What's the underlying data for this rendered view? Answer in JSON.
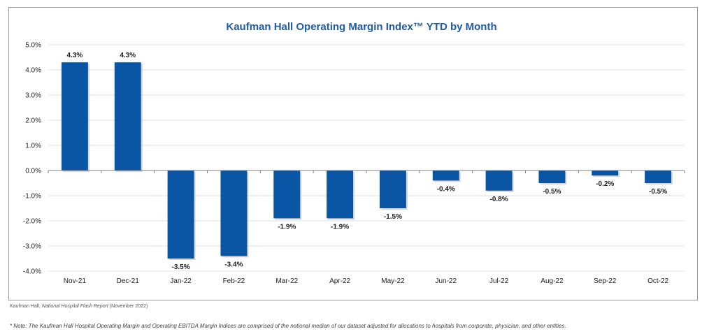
{
  "chart_data": {
    "type": "bar",
    "title": "Kaufman Hall Operating Margin Index™ YTD by Month",
    "xlabel": "",
    "ylabel": "",
    "categories": [
      "Nov-21",
      "Dec-21",
      "Jan-22",
      "Feb-22",
      "Mar-22",
      "Apr-22",
      "May-22",
      "Jun-22",
      "Jul-22",
      "Aug-22",
      "Sep-22",
      "Oct-22"
    ],
    "values": [
      4.3,
      4.3,
      -3.5,
      -3.4,
      -1.9,
      -1.9,
      -1.5,
      -0.4,
      -0.8,
      -0.5,
      -0.2,
      -0.5
    ],
    "data_labels": [
      "4.3%",
      "4.3%",
      "-3.5%",
      "-3.4%",
      "-1.9%",
      "-1.9%",
      "-1.5%",
      "-0.4%",
      "-0.8%",
      "-0.5%",
      "-0.2%",
      "-0.5%"
    ],
    "ylim": [
      -4.0,
      5.0
    ],
    "y_ticks": [
      5.0,
      4.0,
      3.0,
      2.0,
      1.0,
      0.0,
      -1.0,
      -2.0,
      -3.0,
      -4.0
    ],
    "y_tick_labels": [
      "5.0%",
      "4.0%",
      "3.0%",
      "2.0%",
      "1.0%",
      "0.0%",
      "-1.0%",
      "-2.0%",
      "-3.0%",
      "-4.0%"
    ],
    "grid": true,
    "legend": "none",
    "bar_color": "#0b56a4"
  },
  "source": {
    "prefix": "Kaufman Hall, ",
    "publication": "National Hospital Flash Report",
    "suffix": " (November 2022)"
  },
  "footnote": "* Note: The Kaufman Hall Hospital Operating Margin and Operating EBITDA Margin Indices are comprised of the notional median of our dataset adjusted for allocations to hospitals from corporate, physician, and other entities."
}
